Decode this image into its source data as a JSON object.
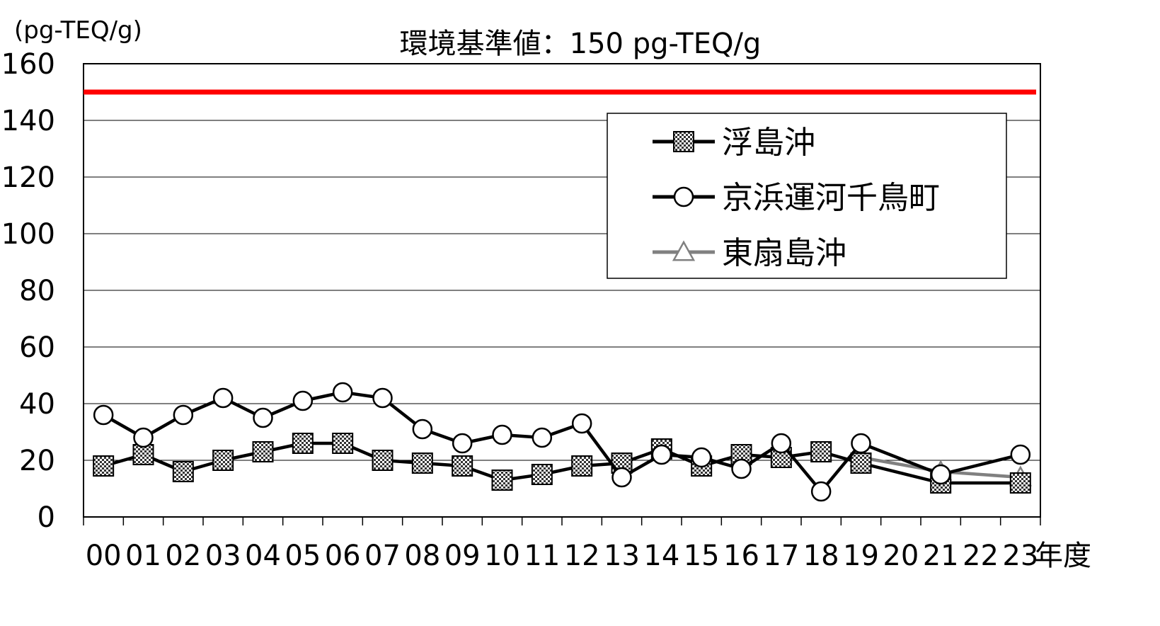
{
  "chart_data": {
    "type": "line",
    "title": "環境基準値：150 pg-TEQ/g",
    "ylabel": "(pg-TEQ/g)",
    "xlabel": "年度",
    "ylim": [
      0,
      160
    ],
    "yticks": [
      "0",
      "20",
      "40",
      "60",
      "80",
      "100",
      "120",
      "140",
      "160"
    ],
    "categories": [
      "00",
      "01",
      "02",
      "03",
      "04",
      "05",
      "06",
      "07",
      "08",
      "09",
      "10",
      "11",
      "12",
      "13",
      "14",
      "15",
      "16",
      "17",
      "18",
      "19",
      "20",
      "21",
      "22",
      "23"
    ],
    "reference_line": {
      "value": 150,
      "color": "#ff0000"
    },
    "grid": true,
    "legend_position": "top-right",
    "series": [
      {
        "name": "浮島沖",
        "marker": "checkered-square",
        "color": "#000000",
        "values": [
          18,
          22,
          16,
          20,
          23,
          26,
          26,
          20,
          19,
          18,
          13,
          15,
          18,
          19,
          24,
          18,
          22,
          21,
          23,
          19,
          null,
          12,
          null,
          12
        ]
      },
      {
        "name": "京浜運河千鳥町",
        "marker": "circle",
        "color": "#000000",
        "values": [
          36,
          28,
          36,
          42,
          35,
          41,
          44,
          42,
          31,
          26,
          29,
          28,
          33,
          14,
          22,
          21,
          17,
          26,
          9,
          26,
          null,
          15,
          null,
          22
        ]
      },
      {
        "name": "東扇島沖",
        "marker": "triangle",
        "color": "#808080",
        "values": [
          null,
          null,
          null,
          null,
          null,
          null,
          null,
          null,
          null,
          null,
          null,
          null,
          null,
          null,
          null,
          null,
          null,
          null,
          null,
          21,
          null,
          16,
          null,
          14
        ]
      }
    ]
  }
}
